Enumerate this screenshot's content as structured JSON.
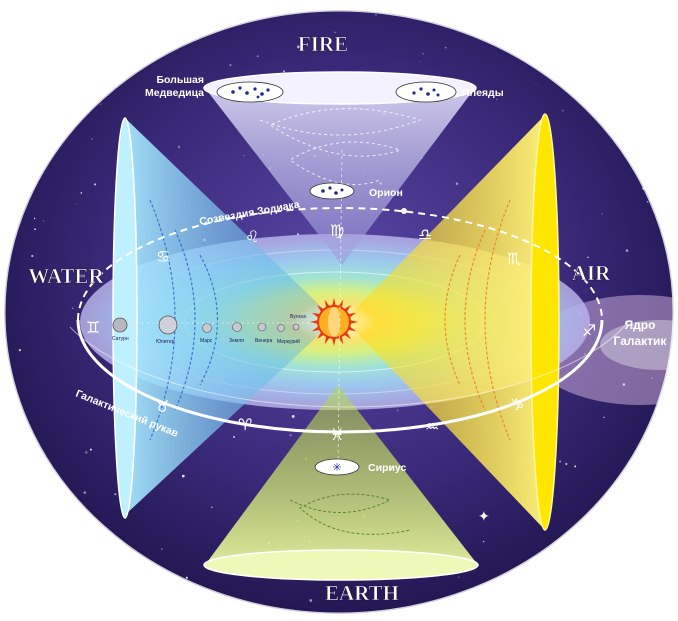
{
  "elements": {
    "fire": "FIRE",
    "water": "WATER",
    "air": "AIR",
    "earth": "EARTH"
  },
  "labels": {
    "ursa_major": [
      "Большая",
      "Медведица"
    ],
    "pleiades": "Плеяды",
    "orion": "Орион",
    "zodiac_constellations": "Созвездия Зодиака",
    "galactic_core": [
      "Ядро",
      "Галактик"
    ],
    "galactic_arm": "Галактический рукав",
    "sirius": "Сириус"
  },
  "planets": [
    "Сатурн",
    "Юпитер",
    "Марс",
    "Земля",
    "Венера",
    "Меркурий",
    "Вулкан"
  ],
  "zodiac_glyphs": {
    "leo": "♌",
    "virgo": "♍",
    "libra": "♎",
    "cancer": "♋",
    "scorpio": "♏",
    "gemini": "♊",
    "sagittarius": "♐",
    "taurus": "♉",
    "capricorn": "♑",
    "aries": "♈",
    "pisces": "♓",
    "aquarius": "♒"
  },
  "colors": {
    "space": "#3b2a7a",
    "space_dark": "#1c1248",
    "fire_cone": "#b9b6e6",
    "water_cone": "#6ec8f0",
    "air_cone": "#ffe200",
    "earth_cone": "#c6e23a",
    "sun": "#e83a10",
    "orbit": "#ffffff"
  }
}
